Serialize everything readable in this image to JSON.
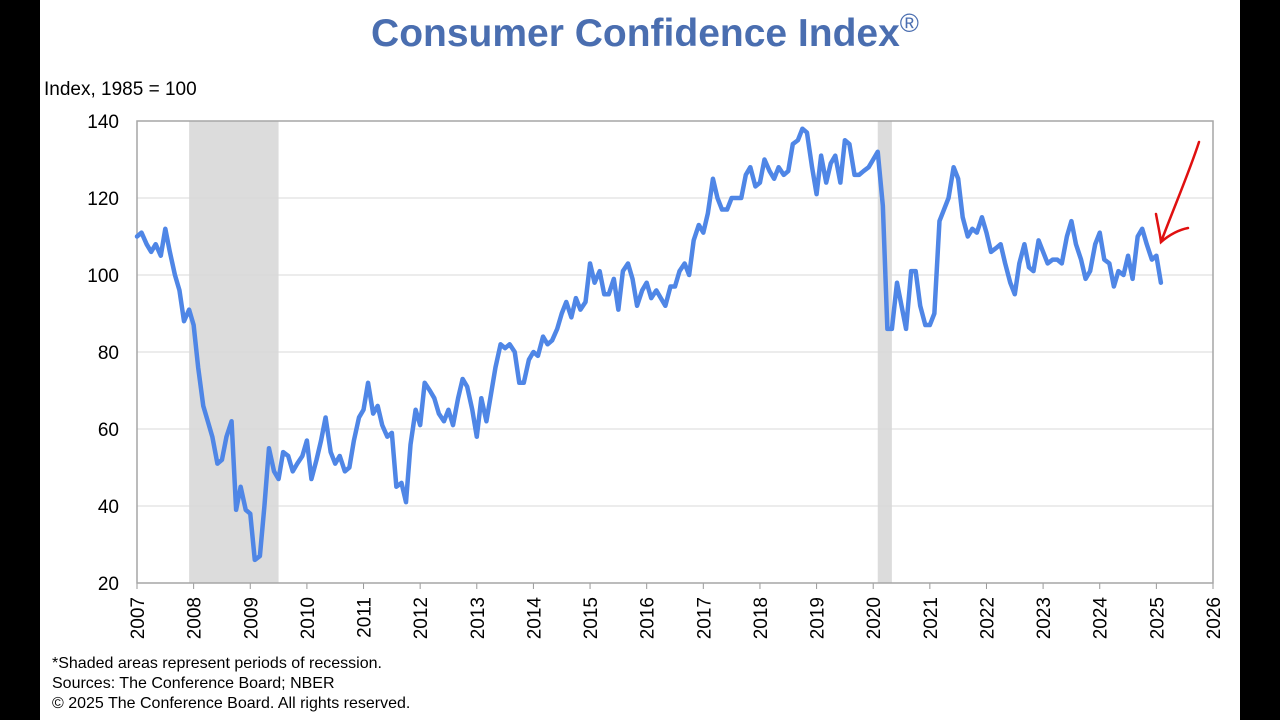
{
  "chart_data": {
    "type": "line",
    "title": "Consumer Confidence Index",
    "title_mark": "®",
    "y_label": "Index, 1985 = 100",
    "footnotes": [
      "*Shaded areas represent periods of recession.",
      "Sources: The Conference Board;  NBER",
      "© 2025 The Conference Board. All rights reserved."
    ],
    "xlim": [
      2007,
      2026
    ],
    "xticks": [
      2007,
      2008,
      2009,
      2010,
      2011,
      2012,
      2013,
      2014,
      2015,
      2016,
      2017,
      2018,
      2019,
      2020,
      2021,
      2022,
      2023,
      2024,
      2025,
      2026
    ],
    "ylim": [
      20,
      140
    ],
    "yticks": [
      20,
      40,
      60,
      80,
      100,
      120,
      140
    ],
    "grid": true,
    "recessions": [
      [
        2007.92,
        2009.5
      ],
      [
        2020.08,
        2020.33
      ]
    ],
    "recession_color": "#dcdcdc",
    "x": [
      2007.0,
      2007.08,
      2007.17,
      2007.25,
      2007.33,
      2007.42,
      2007.5,
      2007.58,
      2007.67,
      2007.75,
      2007.83,
      2007.92,
      2008.0,
      2008.08,
      2008.17,
      2008.25,
      2008.33,
      2008.42,
      2008.5,
      2008.58,
      2008.67,
      2008.75,
      2008.83,
      2008.92,
      2009.0,
      2009.08,
      2009.17,
      2009.25,
      2009.33,
      2009.42,
      2009.5,
      2009.58,
      2009.67,
      2009.75,
      2009.83,
      2009.92,
      2010.0,
      2010.08,
      2010.17,
      2010.25,
      2010.33,
      2010.42,
      2010.5,
      2010.58,
      2010.67,
      2010.75,
      2010.83,
      2010.92,
      2011.0,
      2011.08,
      2011.17,
      2011.25,
      2011.33,
      2011.42,
      2011.5,
      2011.58,
      2011.67,
      2011.75,
      2011.83,
      2011.92,
      2012.0,
      2012.08,
      2012.17,
      2012.25,
      2012.33,
      2012.42,
      2012.5,
      2012.58,
      2012.67,
      2012.75,
      2012.83,
      2012.92,
      2013.0,
      2013.08,
      2013.17,
      2013.25,
      2013.33,
      2013.42,
      2013.5,
      2013.58,
      2013.67,
      2013.75,
      2013.83,
      2013.92,
      2014.0,
      2014.08,
      2014.17,
      2014.25,
      2014.33,
      2014.42,
      2014.5,
      2014.58,
      2014.67,
      2014.75,
      2014.83,
      2014.92,
      2015.0,
      2015.08,
      2015.17,
      2015.25,
      2015.33,
      2015.42,
      2015.5,
      2015.58,
      2015.67,
      2015.75,
      2015.83,
      2015.92,
      2016.0,
      2016.08,
      2016.17,
      2016.25,
      2016.33,
      2016.42,
      2016.5,
      2016.58,
      2016.67,
      2016.75,
      2016.83,
      2016.92,
      2017.0,
      2017.08,
      2017.17,
      2017.25,
      2017.33,
      2017.42,
      2017.5,
      2017.58,
      2017.67,
      2017.75,
      2017.83,
      2017.92,
      2018.0,
      2018.08,
      2018.17,
      2018.25,
      2018.33,
      2018.42,
      2018.5,
      2018.58,
      2018.67,
      2018.75,
      2018.83,
      2018.92,
      2019.0,
      2019.08,
      2019.17,
      2019.25,
      2019.33,
      2019.42,
      2019.5,
      2019.58,
      2019.67,
      2019.75,
      2019.83,
      2019.92,
      2020.0,
      2020.08,
      2020.17,
      2020.25,
      2020.33,
      2020.42,
      2020.5,
      2020.58,
      2020.67,
      2020.75,
      2020.83,
      2020.92,
      2021.0,
      2021.08,
      2021.17,
      2021.25,
      2021.33,
      2021.42,
      2021.5,
      2021.58,
      2021.67,
      2021.75,
      2021.83,
      2021.92,
      2022.0,
      2022.08,
      2022.17,
      2022.25,
      2022.33,
      2022.42,
      2022.5,
      2022.58,
      2022.67,
      2022.75,
      2022.83,
      2022.92,
      2023.0,
      2023.08,
      2023.17,
      2023.25,
      2023.33,
      2023.42,
      2023.5,
      2023.58,
      2023.67,
      2023.75,
      2023.83,
      2023.92,
      2024.0,
      2024.08,
      2024.17,
      2024.25,
      2024.33,
      2024.42,
      2024.5,
      2024.58,
      2024.67,
      2024.75,
      2024.83,
      2024.92,
      2025.0,
      2025.08
    ],
    "series": [
      {
        "color": "#4f86e6",
        "values": [
          110,
          111,
          108,
          106,
          108,
          105,
          112,
          106,
          100,
          96,
          88,
          91,
          87,
          76,
          66,
          62,
          58,
          51,
          52,
          58,
          62,
          39,
          45,
          39,
          38,
          26,
          27,
          40,
          55,
          49,
          47,
          54,
          53,
          49,
          51,
          53,
          57,
          47,
          52,
          57,
          63,
          54,
          51,
          53,
          49,
          50,
          57,
          63,
          65,
          72,
          64,
          66,
          61,
          58,
          59,
          45,
          46,
          41,
          56,
          65,
          61,
          72,
          70,
          68,
          64,
          62,
          65,
          61,
          68,
          73,
          71,
          65,
          58,
          68,
          62,
          69,
          76,
          82,
          81,
          82,
          80,
          72,
          72,
          78,
          80,
          79,
          84,
          82,
          83,
          86,
          90,
          93,
          89,
          94,
          91,
          93,
          103,
          98,
          101,
          95,
          95,
          99,
          91,
          101,
          103,
          99,
          92,
          96,
          98,
          94,
          96,
          94,
          92,
          97,
          97,
          101,
          103,
          100,
          109,
          113,
          111,
          116,
          125,
          120,
          117,
          117,
          120,
          120,
          120,
          126,
          128,
          123,
          124,
          130,
          127,
          125,
          128,
          126,
          127,
          134,
          135,
          138,
          137,
          128,
          121,
          131,
          124,
          129,
          131,
          124,
          135,
          134,
          126,
          126,
          127,
          128,
          130,
          132,
          118,
          86,
          86,
          98,
          92,
          86,
          101,
          101,
          92,
          87,
          87,
          90,
          114,
          117,
          120,
          128,
          125,
          115,
          110,
          112,
          111,
          115,
          111,
          106,
          107,
          108,
          103,
          98,
          95,
          103,
          108,
          102,
          101,
          109,
          106,
          103,
          104,
          104,
          103,
          110,
          114,
          108,
          104,
          99,
          101,
          108,
          111,
          104,
          103,
          97,
          101,
          100,
          105,
          99,
          110,
          112,
          108,
          104,
          105,
          98
        ]
      }
    ]
  }
}
